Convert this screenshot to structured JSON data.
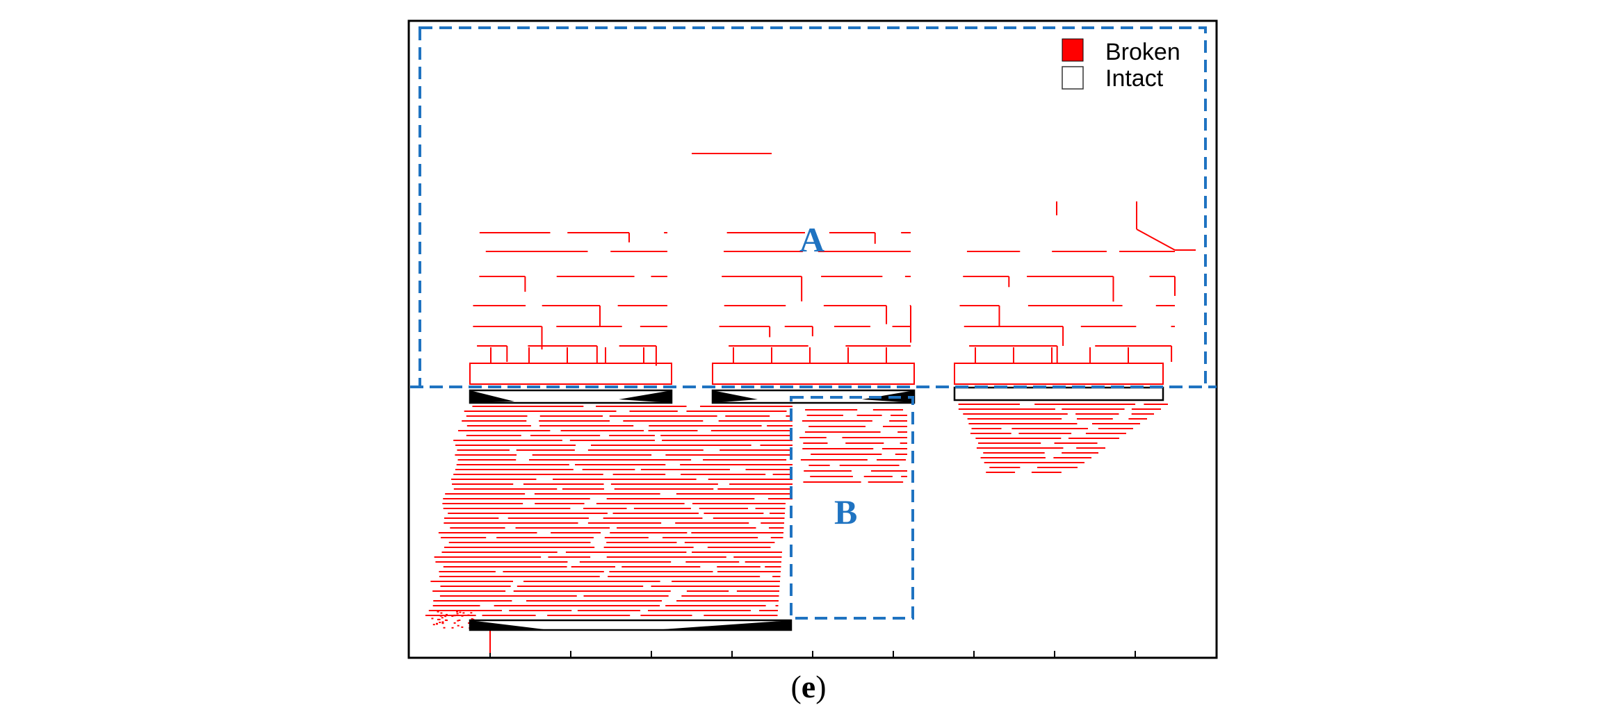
{
  "legend": {
    "broken": {
      "label": "Broken",
      "color": "#ff0000"
    },
    "intact": {
      "label": "Intact",
      "color": "#ffffff"
    }
  },
  "regions": {
    "a": {
      "label": "A",
      "color": "#1f73c1"
    },
    "b": {
      "label": "B",
      "color": "#1f73c1"
    }
  },
  "caption": {
    "open": "(",
    "letter": "e",
    "close": ")"
  },
  "colors": {
    "crack": "#ff0000",
    "frame": "#000000",
    "dashed": "#1f73c1"
  }
}
